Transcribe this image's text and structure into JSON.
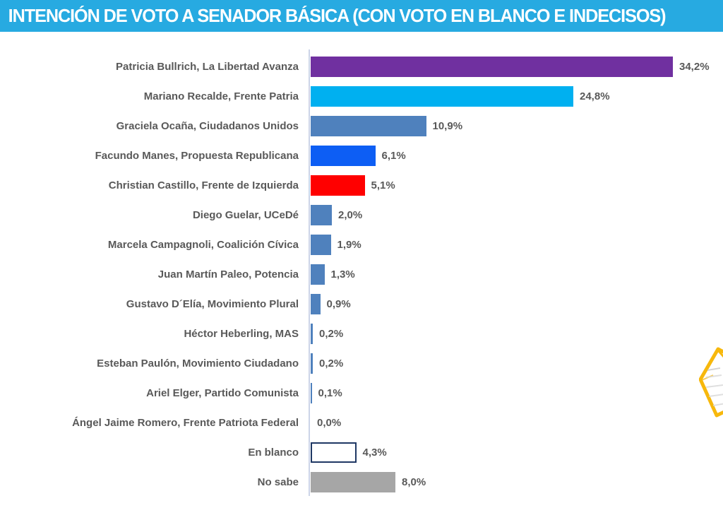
{
  "chart_data": {
    "type": "bar",
    "orientation": "horizontal",
    "title": "INTENCIÓN DE VOTO A SENADOR BÁSICA (CON VOTO EN BLANCO E INDECISOS)",
    "title_bg_color": "#27AAE1",
    "title_text_color": "#ffffff",
    "label_color": "#595959",
    "axis_color": "#ccd4e8",
    "xlim": [
      0,
      38
    ],
    "grid": false,
    "legend": false,
    "value_suffix": "%",
    "items": [
      {
        "name": "Patricia Bullrich, La Libertad Avanza",
        "value": 34.2,
        "value_label": "34,2%",
        "fill": "#7030A0"
      },
      {
        "name": "Mariano Recalde, Frente Patria",
        "value": 24.8,
        "value_label": "24,8%",
        "fill": "#00B0F0"
      },
      {
        "name": "Graciela Ocaña, Ciudadanos Unidos",
        "value": 10.9,
        "value_label": "10,9%",
        "fill": "#4F81BD"
      },
      {
        "name": "Facundo Manes, Propuesta Republicana",
        "value": 6.1,
        "value_label": "6,1%",
        "fill": "#0D5EF4"
      },
      {
        "name": "Christian Castillo, Frente de Izquierda",
        "value": 5.1,
        "value_label": "5,1%",
        "fill": "#FF0000"
      },
      {
        "name": "Diego Guelar, UCeDé",
        "value": 2.0,
        "value_label": "2,0%",
        "fill": "#4F81BD"
      },
      {
        "name": "Marcela Campagnoli, Coalición Cívica",
        "value": 1.9,
        "value_label": "1,9%",
        "fill": "#4F81BD"
      },
      {
        "name": "Juan Martín Paleo, Potencia",
        "value": 1.3,
        "value_label": "1,3%",
        "fill": "#4F81BD"
      },
      {
        "name": "Gustavo D´Elía, Movimiento Plural",
        "value": 0.9,
        "value_label": "0,9%",
        "fill": "#4F81BD"
      },
      {
        "name": "Héctor Heberling, MAS",
        "value": 0.2,
        "value_label": "0,2%",
        "fill": "#4F81BD"
      },
      {
        "name": "Esteban Paulón, Movimiento Ciudadano",
        "value": 0.2,
        "value_label": "0,2%",
        "fill": "#4F81BD"
      },
      {
        "name": "Ariel Elger, Partido Comunista",
        "value": 0.1,
        "value_label": "0,1%",
        "fill": "#4F81BD"
      },
      {
        "name": "Ángel Jaime Romero, Frente Patriota Federal",
        "value": 0.0,
        "value_label": "0,0%",
        "fill": "#4F81BD"
      },
      {
        "name": "En blanco",
        "value": 4.3,
        "value_label": "4,3%",
        "fill": "#FFFFFF",
        "border": "#1F3864"
      },
      {
        "name": "No sabe",
        "value": 8.0,
        "value_label": "8,0%",
        "fill": "#A6A6A6"
      }
    ],
    "logo": {
      "name": "partial-badge-logo",
      "border_color": "#F7B80C"
    }
  }
}
